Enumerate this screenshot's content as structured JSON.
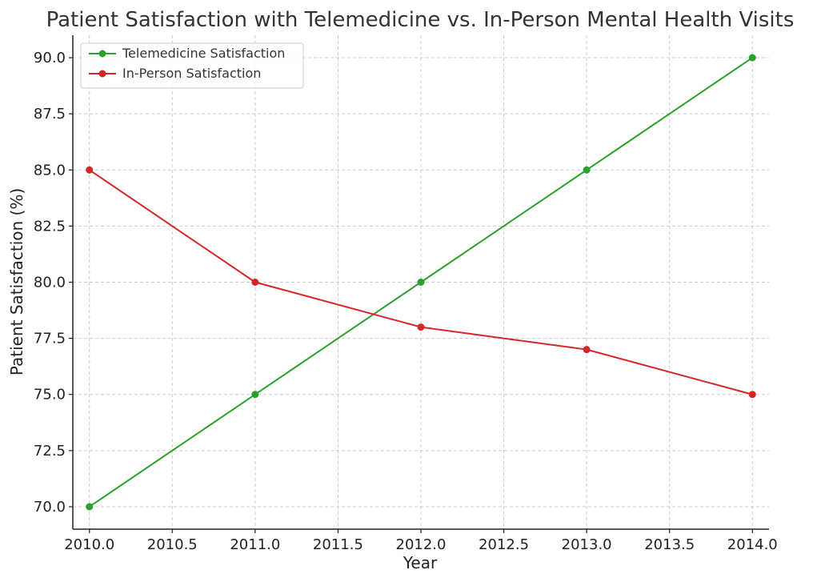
{
  "chart_data": {
    "type": "line",
    "title": "Patient Satisfaction with Telemedicine vs. In-Person Mental Health Visits",
    "xlabel": "Year",
    "ylabel": "Patient Satisfaction (%)",
    "x": [
      2010,
      2011,
      2012,
      2013,
      2014
    ],
    "xlim": [
      2009.9,
      2014.1
    ],
    "ylim": [
      69.0,
      91.0
    ],
    "x_ticks": [
      2010.0,
      2010.5,
      2011.0,
      2011.5,
      2012.0,
      2012.5,
      2013.0,
      2013.5,
      2014.0
    ],
    "x_tick_labels": [
      "2010.0",
      "2010.5",
      "2011.0",
      "2011.5",
      "2012.0",
      "2012.5",
      "2013.0",
      "2013.5",
      "2014.0"
    ],
    "y_ticks": [
      70.0,
      72.5,
      75.0,
      77.5,
      80.0,
      82.5,
      85.0,
      87.5,
      90.0
    ],
    "y_tick_labels": [
      "70.0",
      "72.5",
      "75.0",
      "77.5",
      "80.0",
      "82.5",
      "85.0",
      "87.5",
      "90.0"
    ],
    "grid": true,
    "legend_position": "top-left",
    "series": [
      {
        "name": "Telemedicine Satisfaction",
        "color": "#2ca02c",
        "values": [
          70,
          75,
          80,
          85,
          90
        ]
      },
      {
        "name": "In-Person Satisfaction",
        "color": "#d62728",
        "values": [
          85,
          80,
          78,
          77,
          75
        ]
      }
    ]
  }
}
